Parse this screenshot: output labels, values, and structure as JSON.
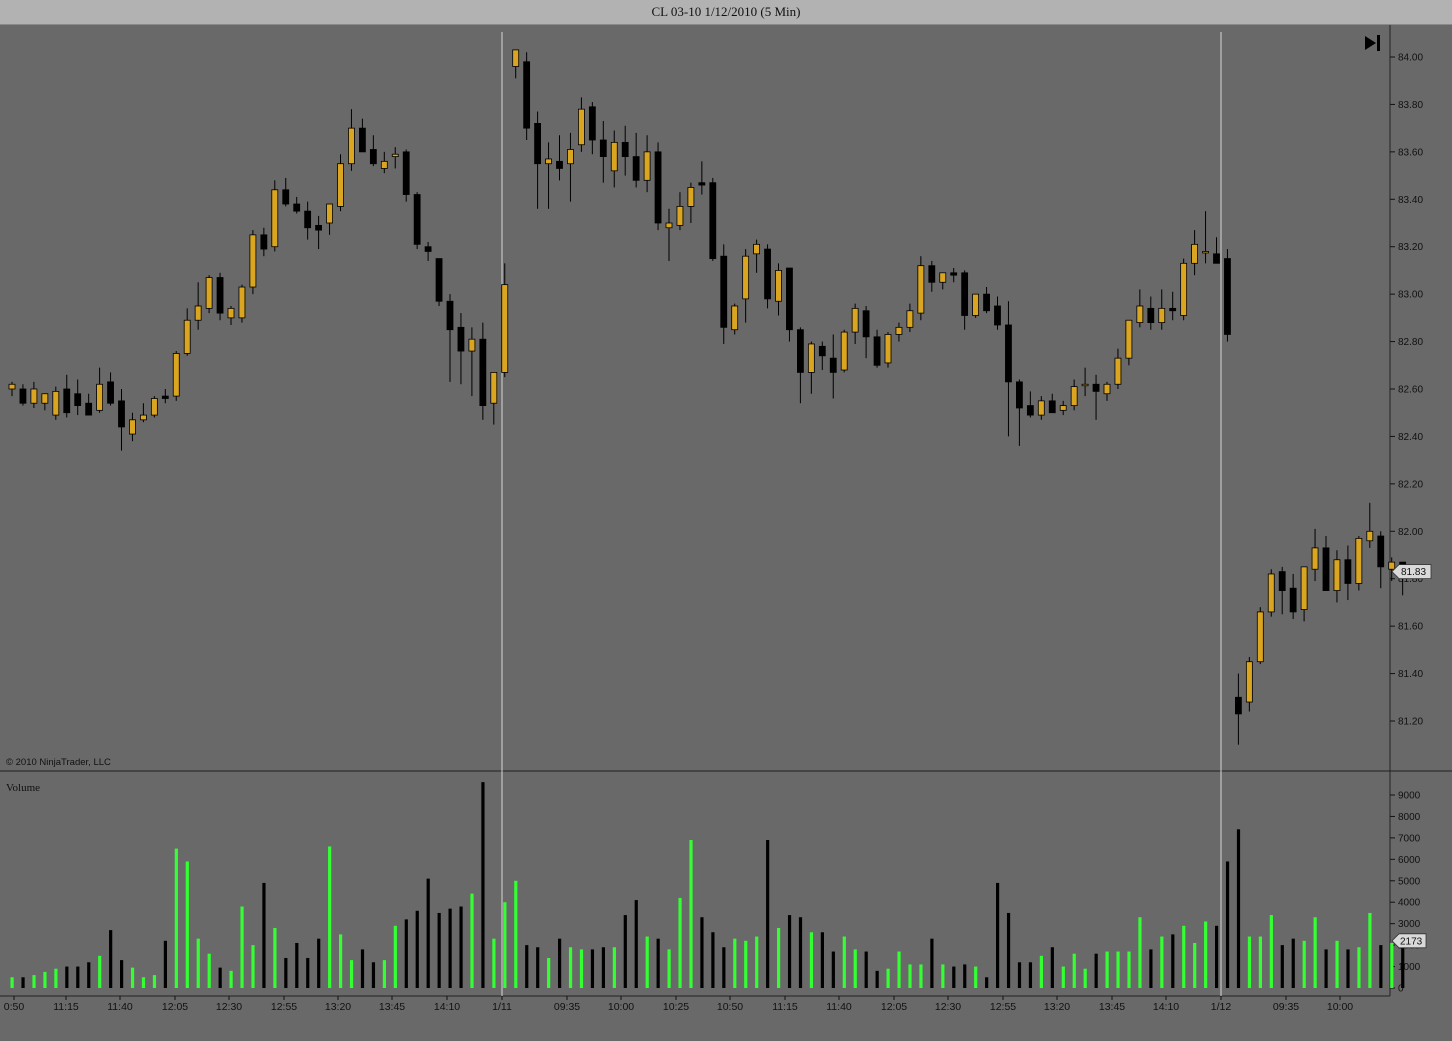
{
  "window": {
    "title": "CL 03-10  1/12/2010 (5 Min)"
  },
  "copyright": "© 2010 NinjaTrader, LLC",
  "volume_label": "Volume",
  "current_price_label": "81.83",
  "current_volume_label": "2173",
  "colors": {
    "background": "#696969",
    "up_candle": "#daa520",
    "down_candle": "#000000",
    "up_volume": "#33ff33",
    "down_volume": "#000000",
    "session_line": "#d8d8d8"
  },
  "chart_data": [
    {
      "type": "candlestick",
      "title": "CL 03-10  1/12/2010 (5 Min)",
      "ylim": [
        81.0,
        84.15
      ],
      "yticks": [
        "84.00",
        "83.80",
        "83.60",
        "83.40",
        "83.20",
        "83.00",
        "82.80",
        "82.60",
        "82.40",
        "82.20",
        "82.00",
        "81.80",
        "81.60",
        "81.40",
        "81.20"
      ],
      "xticks": [
        "0:50",
        "11:15",
        "11:40",
        "12:05",
        "12:30",
        "12:55",
        "13:20",
        "13:45",
        "14:10",
        "1/11",
        "09:35",
        "10:00",
        "10:25",
        "10:50",
        "11:15",
        "11:40",
        "12:05",
        "12:30",
        "12:55",
        "13:20",
        "13:45",
        "14:10",
        "1/12",
        "09:35",
        "10:00"
      ],
      "session_breaks": [
        "1/11",
        "1/12"
      ],
      "last_price": 81.83,
      "series": [
        {
          "name": "CL 03-10",
          "ohlc": [
            [
              82.6,
              82.63,
              82.57,
              82.62
            ],
            [
              82.6,
              82.62,
              82.53,
              82.54
            ],
            [
              82.54,
              82.63,
              82.52,
              82.6
            ],
            [
              82.54,
              82.58,
              82.51,
              82.58
            ],
            [
              82.49,
              82.61,
              82.47,
              82.59
            ],
            [
              82.6,
              82.66,
              82.48,
              82.5
            ],
            [
              82.58,
              82.64,
              82.49,
              82.53
            ],
            [
              82.54,
              82.58,
              82.49,
              82.49
            ],
            [
              82.51,
              82.69,
              82.5,
              82.62
            ],
            [
              82.63,
              82.67,
              82.53,
              82.54
            ],
            [
              82.55,
              82.6,
              82.34,
              82.44
            ],
            [
              82.41,
              82.5,
              82.38,
              82.47
            ],
            [
              82.47,
              82.54,
              82.46,
              82.49
            ],
            [
              82.49,
              82.57,
              82.48,
              82.56
            ],
            [
              82.57,
              82.6,
              82.54,
              82.56
            ],
            [
              82.57,
              82.76,
              82.55,
              82.75
            ],
            [
              82.75,
              82.94,
              82.74,
              82.89
            ],
            [
              82.89,
              83.05,
              82.85,
              82.95
            ],
            [
              82.94,
              83.08,
              82.92,
              83.07
            ],
            [
              83.07,
              83.09,
              82.89,
              82.92
            ],
            [
              82.9,
              82.95,
              82.87,
              82.94
            ],
            [
              82.9,
              83.04,
              82.88,
              83.03
            ],
            [
              83.03,
              83.27,
              83.0,
              83.25
            ],
            [
              83.25,
              83.28,
              83.16,
              83.19
            ],
            [
              83.2,
              83.48,
              83.18,
              83.44
            ],
            [
              83.44,
              83.49,
              83.37,
              83.38
            ],
            [
              83.38,
              83.41,
              83.34,
              83.35
            ],
            [
              83.35,
              83.39,
              83.23,
              83.28
            ],
            [
              83.29,
              83.33,
              83.19,
              83.27
            ],
            [
              83.3,
              83.37,
              83.25,
              83.38
            ],
            [
              83.37,
              83.59,
              83.35,
              83.55
            ],
            [
              83.55,
              83.78,
              83.52,
              83.7
            ],
            [
              83.7,
              83.74,
              83.61,
              83.6
            ],
            [
              83.61,
              83.67,
              83.54,
              83.55
            ],
            [
              83.53,
              83.6,
              83.51,
              83.56
            ],
            [
              83.58,
              83.62,
              83.53,
              83.59
            ],
            [
              83.6,
              83.61,
              83.39,
              83.42
            ],
            [
              83.42,
              83.43,
              83.19,
              83.21
            ],
            [
              83.2,
              83.22,
              83.14,
              83.18
            ],
            [
              83.15,
              83.15,
              82.95,
              82.97
            ],
            [
              82.97,
              83.0,
              82.63,
              82.85
            ],
            [
              82.86,
              82.92,
              82.62,
              82.76
            ],
            [
              82.76,
              82.86,
              82.57,
              82.81
            ],
            [
              82.81,
              82.88,
              82.47,
              82.53
            ],
            [
              82.54,
              82.67,
              82.45,
              82.67
            ],
            [
              82.67,
              83.13,
              82.65,
              83.04
            ],
            [
              83.96,
              84.03,
              83.91,
              84.03
            ],
            [
              83.98,
              84.02,
              83.65,
              83.7
            ],
            [
              83.72,
              83.77,
              83.36,
              83.55
            ],
            [
              83.55,
              83.64,
              83.36,
              83.57
            ],
            [
              83.56,
              83.67,
              83.48,
              83.53
            ],
            [
              83.55,
              83.68,
              83.39,
              83.61
            ],
            [
              83.63,
              83.83,
              83.6,
              83.78
            ],
            [
              83.79,
              83.81,
              83.59,
              83.65
            ],
            [
              83.65,
              83.73,
              83.47,
              83.58
            ],
            [
              83.52,
              83.69,
              83.45,
              83.64
            ],
            [
              83.64,
              83.71,
              83.5,
              83.58
            ],
            [
              83.58,
              83.68,
              83.45,
              83.48
            ],
            [
              83.48,
              83.67,
              83.43,
              83.6
            ],
            [
              83.6,
              83.64,
              83.27,
              83.3
            ],
            [
              83.28,
              83.36,
              83.14,
              83.3
            ],
            [
              83.29,
              83.43,
              83.27,
              83.37
            ],
            [
              83.37,
              83.47,
              83.3,
              83.45
            ],
            [
              83.47,
              83.56,
              83.42,
              83.46
            ],
            [
              83.47,
              83.49,
              83.14,
              83.15
            ],
            [
              83.16,
              83.21,
              82.79,
              82.86
            ],
            [
              82.85,
              82.96,
              82.83,
              82.95
            ],
            [
              82.98,
              83.19,
              82.88,
              83.16
            ],
            [
              83.17,
              83.23,
              83.09,
              83.21
            ],
            [
              83.19,
              83.21,
              82.94,
              82.98
            ],
            [
              82.97,
              83.13,
              82.91,
              83.1
            ],
            [
              83.11,
              83.11,
              82.8,
              82.85
            ],
            [
              82.85,
              82.86,
              82.54,
              82.67
            ],
            [
              82.67,
              82.8,
              82.58,
              82.79
            ],
            [
              82.78,
              82.8,
              82.68,
              82.74
            ],
            [
              82.73,
              82.83,
              82.56,
              82.67
            ],
            [
              82.68,
              82.85,
              82.67,
              82.84
            ],
            [
              82.84,
              82.96,
              82.79,
              82.94
            ],
            [
              82.93,
              82.95,
              82.73,
              82.82
            ],
            [
              82.82,
              82.85,
              82.69,
              82.7
            ],
            [
              82.71,
              82.84,
              82.69,
              82.83
            ],
            [
              82.83,
              82.88,
              82.8,
              82.86
            ],
            [
              82.86,
              82.96,
              82.84,
              82.93
            ],
            [
              82.92,
              83.16,
              82.89,
              83.12
            ],
            [
              83.12,
              83.14,
              83.01,
              83.05
            ],
            [
              83.05,
              83.09,
              83.02,
              83.09
            ],
            [
              83.09,
              83.11,
              83.05,
              83.08
            ],
            [
              83.09,
              83.1,
              82.85,
              82.91
            ],
            [
              82.91,
              83.0,
              82.9,
              83.0
            ],
            [
              83.0,
              83.03,
              82.92,
              82.93
            ],
            [
              82.95,
              82.99,
              82.85,
              82.87
            ],
            [
              82.87,
              82.97,
              82.4,
              82.63
            ],
            [
              82.63,
              82.64,
              82.36,
              82.52
            ],
            [
              82.53,
              82.59,
              82.48,
              82.49
            ],
            [
              82.49,
              82.57,
              82.47,
              82.55
            ],
            [
              82.55,
              82.58,
              82.5,
              82.5
            ],
            [
              82.51,
              82.55,
              82.49,
              82.53
            ],
            [
              82.53,
              82.64,
              82.51,
              82.61
            ],
            [
              82.62,
              82.69,
              82.57,
              82.62
            ],
            [
              82.62,
              82.66,
              82.47,
              82.59
            ],
            [
              82.58,
              82.63,
              82.55,
              82.62
            ],
            [
              82.62,
              82.77,
              82.6,
              82.73
            ],
            [
              82.73,
              82.89,
              82.7,
              82.89
            ],
            [
              82.88,
              83.02,
              82.86,
              82.95
            ],
            [
              82.94,
              82.99,
              82.85,
              82.88
            ],
            [
              82.88,
              83.02,
              82.85,
              82.94
            ],
            [
              82.94,
              83.01,
              82.89,
              82.93
            ],
            [
              82.91,
              83.15,
              82.89,
              83.13
            ],
            [
              83.13,
              83.27,
              83.08,
              83.21
            ],
            [
              83.18,
              83.35,
              83.13,
              83.18
            ],
            [
              83.17,
              83.24,
              83.14,
              83.13
            ],
            [
              83.15,
              83.19,
              82.8,
              82.83
            ],
            [
              81.3,
              81.4,
              81.1,
              81.23
            ],
            [
              81.28,
              81.47,
              81.24,
              81.45
            ],
            [
              81.45,
              81.68,
              81.44,
              81.66
            ],
            [
              81.66,
              81.84,
              81.64,
              81.82
            ],
            [
              81.83,
              81.85,
              81.65,
              81.75
            ],
            [
              81.76,
              81.82,
              81.63,
              81.66
            ],
            [
              81.67,
              81.85,
              81.62,
              81.85
            ],
            [
              81.84,
              82.01,
              81.79,
              81.93
            ],
            [
              81.93,
              81.98,
              81.76,
              81.75
            ],
            [
              81.75,
              81.92,
              81.7,
              81.88
            ],
            [
              81.88,
              81.94,
              81.71,
              81.78
            ],
            [
              81.78,
              81.98,
              81.75,
              81.97
            ],
            [
              81.96,
              82.12,
              81.93,
              82.0
            ],
            [
              81.98,
              82.0,
              81.76,
              81.85
            ],
            [
              81.84,
              81.89,
              81.79,
              81.87
            ],
            [
              81.87,
              81.87,
              81.73,
              81.83
            ]
          ]
        }
      ]
    },
    {
      "type": "bar",
      "title": "Volume",
      "ylim": [
        0,
        9500
      ],
      "yticks": [
        "9000",
        "8000",
        "7000",
        "6000",
        "5000",
        "4000",
        "3000",
        "2000",
        "1000",
        "0"
      ],
      "series": [
        {
          "name": "Volume",
          "values": [
            500,
            500,
            600,
            750,
            900,
            1000,
            1000,
            1200,
            1500,
            2700,
            1300,
            950,
            500,
            600,
            2200,
            6500,
            5900,
            2300,
            1600,
            950,
            800,
            3800,
            2000,
            4900,
            2800,
            1400,
            2100,
            1400,
            2300,
            6600,
            2500,
            1300,
            1800,
            1200,
            1300,
            2900,
            3200,
            3600,
            5100,
            3500,
            3700,
            3800,
            4400,
            9600,
            2300,
            4000,
            5000,
            2000,
            1900,
            1400,
            2300,
            1900,
            1800,
            1800,
            1900,
            1900,
            3400,
            4100,
            2400,
            2300,
            1800,
            4200,
            6900,
            3300,
            2600,
            1900,
            2300,
            2200,
            2400,
            6900,
            2800,
            3400,
            3300,
            2600,
            2600,
            1700,
            2400,
            1800,
            1700,
            800,
            900,
            1700,
            1100,
            1100,
            2300,
            1100,
            1000,
            1100,
            1000,
            500,
            4900,
            3500,
            1200,
            1200,
            1500,
            1900,
            1000,
            1600,
            900,
            1600,
            1700,
            1700,
            1700,
            3300,
            1800,
            2400,
            2500,
            2900,
            2100,
            3100,
            2900,
            5900,
            7400,
            2400,
            2400,
            3400,
            2000,
            2300,
            2200,
            3300,
            1800,
            2200,
            1800,
            1900,
            3500,
            2000,
            2100,
            2200
          ]
        }
      ]
    }
  ]
}
